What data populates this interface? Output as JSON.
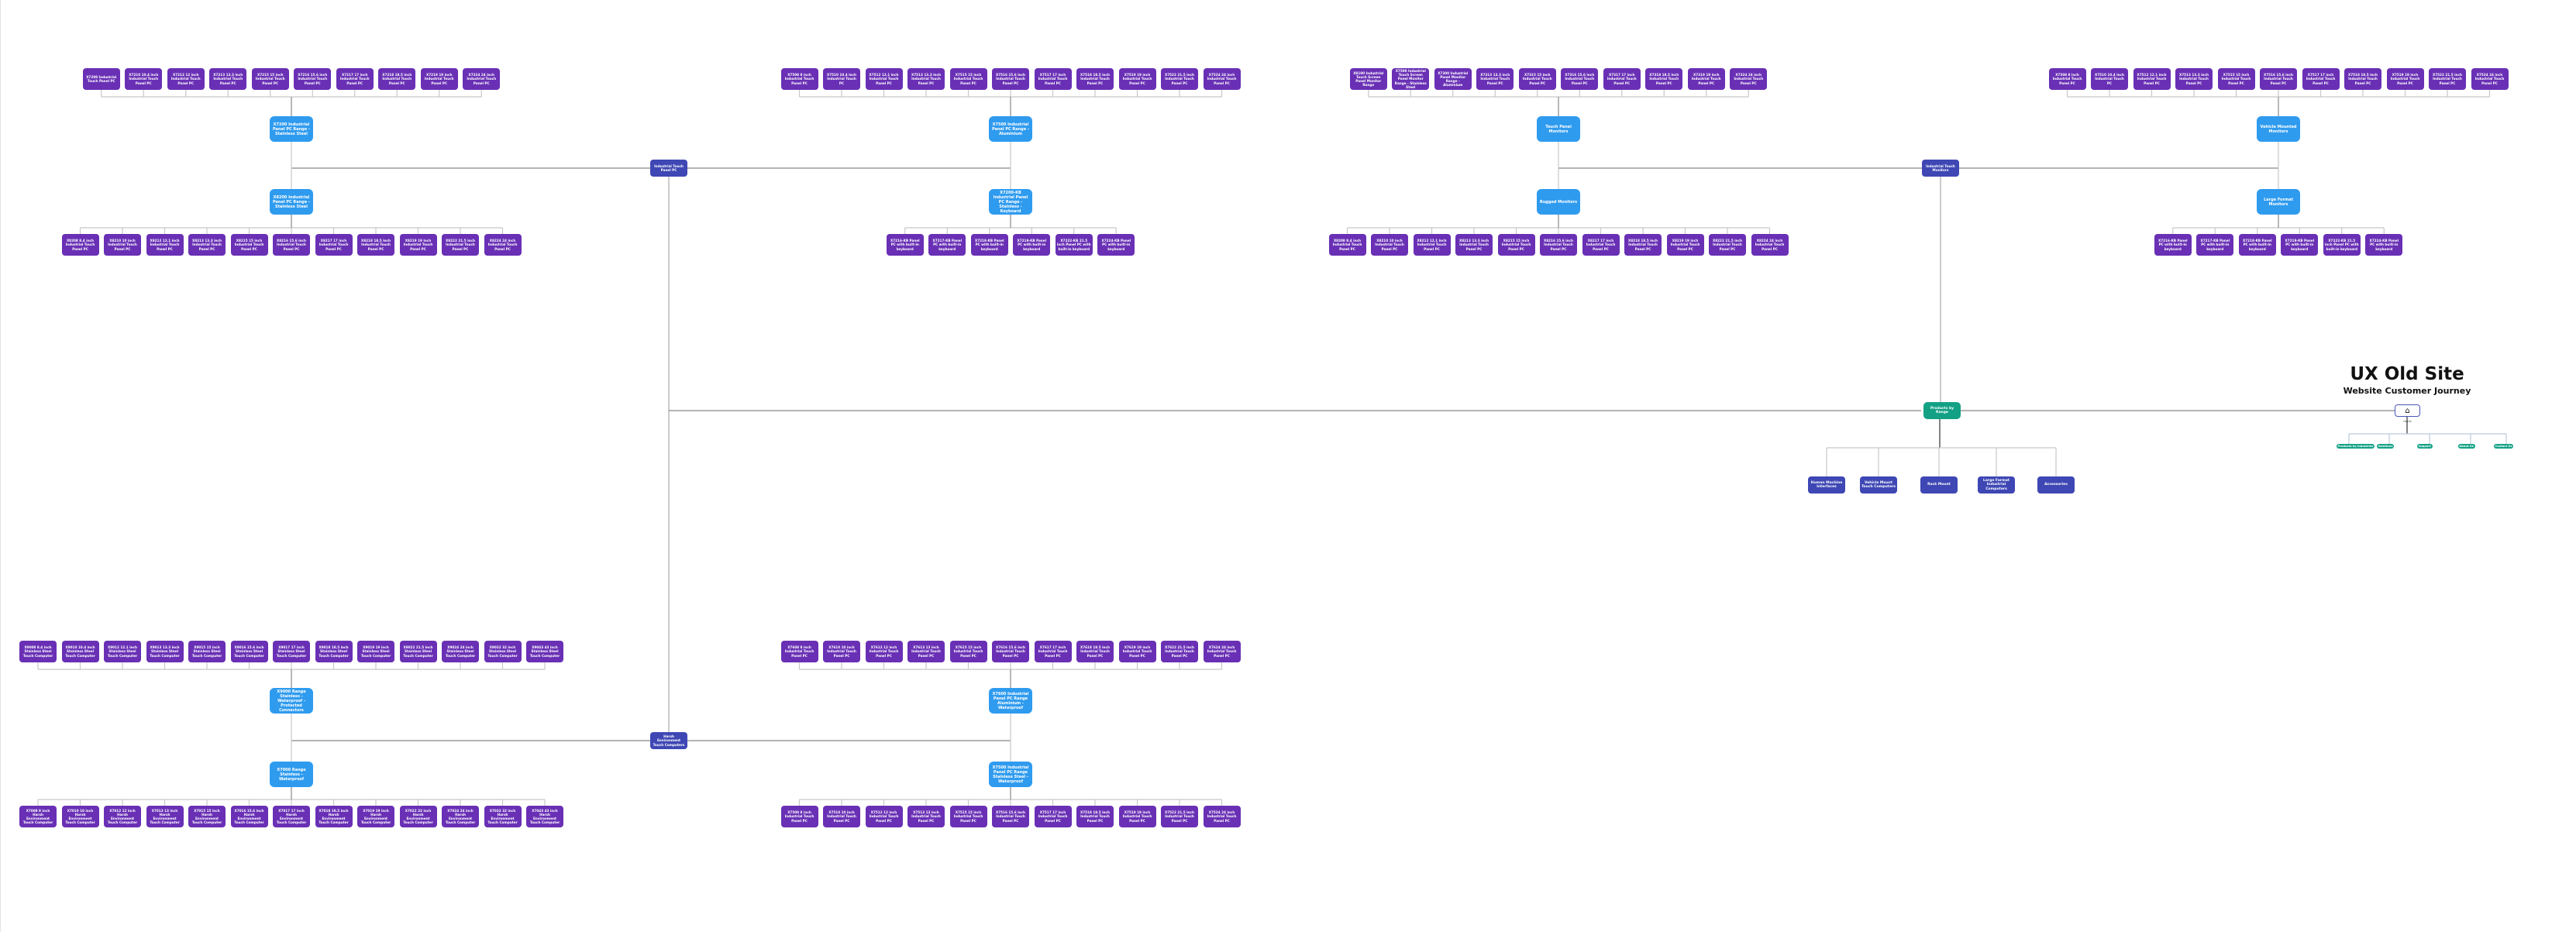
{
  "title": "UX Old Site",
  "subtitle": "Website Customer Journey",
  "colors": {
    "model": "#6930b5",
    "range": "#2f9bef",
    "hub": "#3e47b4",
    "teal": "#13a185"
  },
  "home": {
    "label": "Home",
    "icon": "home-icon",
    "children": [
      "Products by Industries",
      "Solutions",
      "Support",
      "About Us",
      "Contact Us"
    ]
  },
  "products_by_range": {
    "label": "Products by Range",
    "children": [
      "Human Machine Interfaces",
      "Vehicle Mount Touch Computers",
      "Rack Mount",
      "Large Format Industrial Computers",
      "Accessories"
    ]
  },
  "hubs": [
    {
      "label": "Industrial Touch Panel PC",
      "ranges": [
        {
          "label": "X7200 Industrial Panel PC Range - Stainless Steel",
          "models": [
            "X7208 Industrial Touch Panel PC",
            "X7210 10.4 inch Industrial Touch Panel PC",
            "X7212 12 inch Industrial Touch Panel PC",
            "X7213 13.3 inch Industrial Touch Panel PC",
            "X7215 15 inch Industrial Touch Panel PC",
            "X7216 15.6 inch Industrial Touch Panel PC",
            "X7217 17 inch Industrial Touch Panel PC",
            "X7218 18.5 inch Industrial Touch Panel PC",
            "X7219 19 inch Industrial Touch Panel PC",
            "X7224 24 inch Industrial Touch Panel PC"
          ]
        },
        {
          "label": "X8200 Industrial Panel PC Range - Stainless Steel",
          "models": [
            "X8208 8.4 inch Industrial Touch Panel PC",
            "X8210 10 inch Industrial Touch Panel PC",
            "X8212 12.1 inch Industrial Touch Panel PC",
            "X8213 13.3 inch Industrial Touch Panel PC",
            "X8215 15 inch Industrial Touch Panel PC",
            "X8216 15.6 inch Industrial Touch Panel PC",
            "X8217 17 inch Industrial Touch Panel PC",
            "X8218 18.5 inch Industrial Touch Panel PC",
            "X8219 19 inch Industrial Touch Panel PC",
            "X8222 21.5 inch Industrial Touch Panel PC",
            "X8224 24 inch Industrial Touch Panel PC"
          ]
        },
        {
          "label": "X7500 Industrial Panel PC Range - Aluminium",
          "models": [
            "X7508 8 inch Industrial Touch Panel PC",
            "X7510 10.4 inch Industrial Touch PC",
            "X7512 12.1 inch Industrial Touch Panel PC",
            "X7513 13.3 inch Industrial Touch Panel PC",
            "X7515 15 inch Industrial Touch Panel PC",
            "X7516 15.6 inch Industrial Touch Panel PC",
            "X7517 17 inch Industrial Touch Panel PC",
            "X7518 18.5 inch Industrial Touch Panel PC",
            "X7519 19 inch Industrial Touch Panel PC",
            "X7522 21.5 inch Industrial Touch Panel PC",
            "X7524 24 inch Industrial Touch Panel PC"
          ]
        },
        {
          "label": "X7200-KB Industrial Panel PC Range - Stainless - Keyboard",
          "models": [
            "X7216-KB Panel PC with built-in keyboard",
            "X7217-KB Panel PC with built-in keyboard",
            "X7218-KB Panel PC with built-in keyboard",
            "X7219-KB Panel PC with built-in keyboard",
            "X7222-KB 21.5 inch Panel PC with built-in keyboard",
            "X7224-KB Panel PC with built-in keyboard"
          ]
        }
      ]
    },
    {
      "label": "Industrial Touch Monitors",
      "ranges": [
        {
          "label": "Touch Panel Monitors",
          "models": [
            "X8100 Industrial Touch Screen Panel Monitor Range",
            "X7500 Industrial Touch Screen Panel Monitor Range - Stainless Steel",
            "X7300 Industrial Panel Monitor Range - Aluminium",
            "X7313 13.3 inch Industrial Touch Panel PC",
            "X7315 15 inch Industrial Touch Panel PC",
            "X7316 15.6 inch Industrial Touch Panel PC",
            "X7317 17 inch Industrial Touch Panel PC",
            "X7318 18.5 inch Industrial Touch Panel PC",
            "X7319 19 inch Industrial Touch Panel PC",
            "X7324 24 inch Industrial Touch Panel PC"
          ]
        },
        {
          "label": "Rugged Monitors",
          "models": [
            "X8208 8.4 inch Industrial Touch Panel PC",
            "X8210 10 inch Industrial Touch Panel PC",
            "X8212 12.1 inch Industrial Touch Panel PC",
            "X8213 13.3 inch Industrial Touch Panel PC",
            "X8215 15 inch Industrial Touch Panel PC",
            "X8216 15.6 inch Industrial Touch Panel PC",
            "X8217 17 inch Industrial Touch Panel PC",
            "X8218 18.5 inch Industrial Touch Panel PC",
            "X8219 19 inch Industrial Touch Panel PC",
            "X8222 21.5 inch Industrial Touch Panel PC",
            "X8224 24 inch Industrial Touch Panel PC"
          ]
        },
        {
          "label": "Vehicle Mounted Monitors",
          "models": [
            "X7508 8 inch Industrial Touch Panel PC",
            "X7510 10.4 inch Industrial Touch PC",
            "X7512 12.1 inch Industrial Touch Panel PC",
            "X7513 13.3 inch Industrial Touch Panel PC",
            "X7515 15 inch Industrial Touch Panel PC",
            "X7516 15.6 inch Industrial Touch Panel PC",
            "X7517 17 inch Industrial Touch Panel PC",
            "X7518 18.5 inch Industrial Touch Panel PC",
            "X7519 19 inch Industrial Touch Panel PC",
            "X7522 21.5 inch Industrial Touch Panel PC",
            "X7524 24 inch Industrial Touch Panel PC"
          ]
        },
        {
          "label": "Large Format Monitors",
          "models": [
            "X7216-KB Panel PC with built-in keyboard",
            "X7217-KB Panel PC with built-in keyboard",
            "X7218-KB Panel PC with built-in keyboard",
            "X7219-KB Panel PC with built-in keyboard",
            "X7222-KB 21.5 inch Panel PC with built-in keyboard",
            "X7224-KB Panel PC with built-in keyboard"
          ]
        }
      ]
    },
    {
      "label": "Harsh Environment Touch Computers",
      "ranges": [
        {
          "label": "X9000 Range Stainless - Waterproof - Protected Connectors",
          "models": [
            "X9008 8.4 inch Stainless Steel Touch Computer",
            "X9010 10.4 inch Stainless Steel Touch Computer",
            "X9012 12.1 inch Stainless Steel Touch Computer",
            "X9013 13.3 inch Stainless Steel Touch Computer",
            "X9015 15 inch Stainless Steel Touch Computer",
            "X9016 15.6 inch Stainless Steel Touch Computer",
            "X9017 17 inch Stainless Steel Touch Computer",
            "X9018 18.5 inch Stainless Steel Touch Computer",
            "X9019 19 inch Stainless Steel Touch Computer",
            "X9022 21.5 inch Stainless Steel Touch Computer",
            "X9024 24 inch Stainless Steel Touch Computer",
            "X9032 32 inch Stainless Steel Touch Computer",
            "X9043 43 inch Stainless Steel Touch Computer"
          ]
        },
        {
          "label": "X7000 Range Stainless - Waterproof",
          "models": [
            "X7008 8 inch Harsh Environment Touch Computer",
            "X7010 10 inch Harsh Environment Touch Computer",
            "X7012 12 inch Harsh Environment Touch Computer",
            "X7013 13 inch Harsh Environment Touch Computer",
            "X7015 15 inch Harsh Environment Touch Computer",
            "X7016 15.6 inch Harsh Environment Touch Computer",
            "X7017 17 inch Harsh Environment Touch Computer",
            "X7018 18.5 inch Harsh Environment Touch Computer",
            "X7019 19 inch Harsh Environment Touch Computer",
            "X7022 22 inch Harsh Environment Touch Computer",
            "X7024 24 inch Harsh Environment Touch Computer",
            "X7032 32 inch Harsh Environment Touch Computer",
            "X7043 43 inch Harsh Environment Touch Computer"
          ]
        },
        {
          "label": "X7600 Industrial Panel PC Range Aluminium - Waterproof",
          "models": [
            "X7608 8 inch Industrial Touch Panel PC",
            "X7610 10 inch Industrial Touch Panel PC",
            "X7612 12 inch Industrial Touch Panel PC",
            "X7613 13 inch Industrial Touch Panel PC",
            "X7615 15 inch Industrial Touch Panel PC",
            "X7616 15.6 inch Industrial Touch Panel PC",
            "X7617 17 inch Industrial Touch Panel PC",
            "X7618 18.5 inch Industrial Touch Panel PC",
            "X7619 19 inch Industrial Touch Panel PC",
            "X7622 21.5 inch Industrial Touch Panel PC",
            "X7624 24 inch Industrial Touch Panel PC"
          ]
        },
        {
          "label": "X7500 Industrial Panel PC Range Stainless Steel - Waterproof",
          "models": [
            "X7508 8 inch Industrial Touch Panel PC",
            "X7510 10 inch Industrial Touch Panel PC",
            "X7512 12 inch Industrial Touch Panel PC",
            "X7513 13 inch Industrial Touch Panel PC",
            "X7515 15 inch Industrial Touch Panel PC",
            "X7516 15.6 inch Industrial Touch Panel PC",
            "X7517 17 inch Industrial Touch Panel PC",
            "X7518 18.5 inch Industrial Touch Panel PC",
            "X7519 19 inch Industrial Touch Panel PC",
            "X7522 21.5 inch Industrial Touch Panel PC",
            "X7524 24 inch Industrial Touch Panel PC"
          ]
        }
      ]
    }
  ]
}
